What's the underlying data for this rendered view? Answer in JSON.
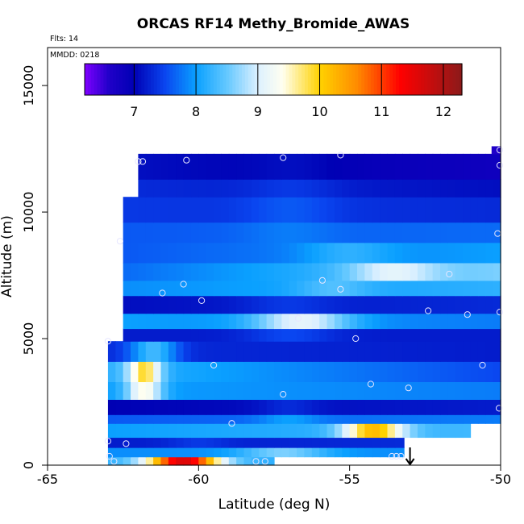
{
  "chart_data": {
    "type": "heatmap",
    "title": "ORCAS RF14 Methy_Bromide_AWAS",
    "flights_note": "Flts: 14",
    "date_note": "MMDD: 0218",
    "xlabel": "Latitude (deg N)",
    "ylabel": "Altitude (m)",
    "xlim": [
      -65,
      -50
    ],
    "ylim": [
      0,
      16500
    ],
    "x_ticks": [
      -65,
      -60,
      -55,
      -50
    ],
    "x_tick_labels": [
      "-65",
      "-60",
      "-55",
      "-50"
    ],
    "y_ticks": [
      0,
      5000,
      10000,
      15000
    ],
    "y_tick_labels": [
      "0",
      "5000",
      "10000",
      "15000"
    ],
    "colorbar": {
      "range": [
        6.2,
        12.3
      ],
      "ticks": [
        7,
        8,
        9,
        10,
        11,
        12
      ],
      "tick_labels": [
        "7",
        "8",
        "9",
        "10",
        "11",
        "12"
      ],
      "stops": [
        {
          "v": 6.2,
          "c": "#7f00ff"
        },
        {
          "v": 6.6,
          "c": "#1f00c8"
        },
        {
          "v": 7.0,
          "c": "#0000b4"
        },
        {
          "v": 7.5,
          "c": "#0a46f0"
        },
        {
          "v": 8.0,
          "c": "#0aa0ff"
        },
        {
          "v": 8.5,
          "c": "#64c8ff"
        },
        {
          "v": 9.0,
          "c": "#dcf0ff"
        },
        {
          "v": 9.4,
          "c": "#fffff0"
        },
        {
          "v": 10.0,
          "c": "#ffd200"
        },
        {
          "v": 10.6,
          "c": "#ff8c00"
        },
        {
          "v": 11.3,
          "c": "#ff0000"
        },
        {
          "v": 12.3,
          "c": "#8b1a1a"
        }
      ]
    },
    "bands": [
      {
        "alt_lo": 0,
        "alt_hi": 330,
        "lat_lo": -63.0,
        "lat_hi": -57.5,
        "v_lo": 8.2,
        "v_hi": 8.2,
        "pos": -60.5,
        "w": 1.2,
        "peak": 11.6
      },
      {
        "alt_lo": 330,
        "alt_hi": 700,
        "lat_lo": -63.0,
        "lat_hi": -53.2,
        "v_lo": 7.9,
        "v_hi": 7.9,
        "pos": -57.2,
        "w": 1.5,
        "peak": 8.6
      },
      {
        "alt_lo": 700,
        "alt_hi": 1100,
        "lat_lo": -63.0,
        "lat_hi": -53.2,
        "v_lo": 7.2,
        "v_hi": 7.3,
        "pos": -60,
        "w": 1.0,
        "peak": 7.4
      },
      {
        "alt_lo": 1100,
        "alt_hi": 1650,
        "lat_lo": -63.0,
        "lat_hi": -51.0,
        "v_lo": 8.0,
        "v_hi": 8.3,
        "pos": -54.2,
        "w": 1.0,
        "peak": 10.2
      },
      {
        "alt_lo": 1650,
        "alt_hi": 2000,
        "lat_lo": -63.0,
        "lat_hi": -50.0,
        "v_lo": 7.6,
        "v_hi": 7.8,
        "pos": -57,
        "w": 1.0,
        "peak": 8.0
      },
      {
        "alt_lo": 2000,
        "alt_hi": 2600,
        "lat_lo": -63.0,
        "lat_hi": -50.0,
        "v_lo": 7.0,
        "v_hi": 7.2,
        "pos": -57,
        "w": 1.0,
        "peak": 7.3
      },
      {
        "alt_lo": 2600,
        "alt_hi": 3300,
        "lat_lo": -63.0,
        "lat_hi": -50.0,
        "v_lo": 8.0,
        "v_hi": 7.8,
        "pos": -61.8,
        "w": 0.6,
        "peak": 9.4
      },
      {
        "alt_lo": 3300,
        "alt_hi": 4100,
        "lat_lo": -63.0,
        "lat_hi": -50.0,
        "v_lo": 8.2,
        "v_hi": 7.5,
        "pos": -61.8,
        "w": 0.55,
        "peak": 9.9
      },
      {
        "alt_lo": 4100,
        "alt_hi": 4900,
        "lat_lo": -63.0,
        "lat_hi": -50.0,
        "v_lo": 7.3,
        "v_hi": 7.2,
        "pos": -61.5,
        "w": 0.8,
        "peak": 8.3
      },
      {
        "alt_lo": 4900,
        "alt_hi": 5400,
        "lat_lo": -62.5,
        "lat_hi": -50.0,
        "v_lo": 7.2,
        "v_hi": 7.2,
        "pos": -57,
        "w": 1.5,
        "peak": 7.5
      },
      {
        "alt_lo": 5400,
        "alt_hi": 6000,
        "lat_lo": -62.5,
        "lat_hi": -50.0,
        "v_lo": 8.0,
        "v_hi": 7.8,
        "pos": -56.6,
        "w": 1.6,
        "peak": 9.1
      },
      {
        "alt_lo": 6000,
        "alt_hi": 6700,
        "lat_lo": -62.5,
        "lat_hi": -50.0,
        "v_lo": 7.1,
        "v_hi": 7.3,
        "pos": -57,
        "w": 1.5,
        "peak": 7.4
      },
      {
        "alt_lo": 6700,
        "alt_hi": 7300,
        "lat_lo": -62.5,
        "lat_hi": -50.0,
        "v_lo": 7.9,
        "v_hi": 8.2,
        "pos": -55.5,
        "w": 1.2,
        "peak": 8.4
      },
      {
        "alt_lo": 7300,
        "alt_hi": 8000,
        "lat_lo": -62.5,
        "lat_hi": -50.0,
        "v_lo": 7.7,
        "v_hi": 8.6,
        "pos": -53.5,
        "w": 1.5,
        "peak": 9.1
      },
      {
        "alt_lo": 8000,
        "alt_hi": 8800,
        "lat_lo": -62.5,
        "lat_hi": -50.0,
        "v_lo": 7.6,
        "v_hi": 8.0,
        "pos": -55,
        "w": 1.5,
        "peak": 8.2
      },
      {
        "alt_lo": 8800,
        "alt_hi": 9600,
        "lat_lo": -62.5,
        "lat_hi": -50.0,
        "v_lo": 7.6,
        "v_hi": 7.7,
        "pos": -57,
        "w": 1.5,
        "peak": 7.8
      },
      {
        "alt_lo": 9600,
        "alt_hi": 10600,
        "lat_lo": -62.5,
        "lat_hi": -50.0,
        "v_lo": 7.4,
        "v_hi": 7.3,
        "pos": -57,
        "w": 1.5,
        "peak": 7.6
      },
      {
        "alt_lo": 10600,
        "alt_hi": 11300,
        "lat_lo": -62.0,
        "lat_hi": -50.0,
        "v_lo": 7.3,
        "v_hi": 7.1,
        "pos": -57,
        "w": 1.5,
        "peak": 7.4
      },
      {
        "alt_lo": 11300,
        "alt_hi": 12300,
        "lat_lo": -62.0,
        "lat_hi": -50.0,
        "v_lo": 7.1,
        "v_hi": 6.8,
        "pos": -57,
        "w": 1.5,
        "peak": 7.1
      },
      {
        "alt_lo": 12300,
        "alt_hi": 12600,
        "lat_lo": -50.3,
        "lat_hi": -50.0,
        "v_lo": 6.6,
        "v_hi": 6.6,
        "pos": -50.1,
        "w": 0.3,
        "peak": 6.6
      }
    ],
    "samples": [
      {
        "lat": -63.0,
        "alt": 4900
      },
      {
        "lat": -63.0,
        "alt": 950
      },
      {
        "lat": -62.95,
        "alt": 350
      },
      {
        "lat": -62.8,
        "alt": 150
      },
      {
        "lat": -62.4,
        "alt": 850
      },
      {
        "lat": -62.6,
        "alt": 8850
      },
      {
        "lat": -62.0,
        "alt": 12000
      },
      {
        "lat": -61.85,
        "alt": 12000
      },
      {
        "lat": -61.2,
        "alt": 6800
      },
      {
        "lat": -60.5,
        "alt": 7150
      },
      {
        "lat": -60.4,
        "alt": 12050
      },
      {
        "lat": -59.9,
        "alt": 6500
      },
      {
        "lat": -59.5,
        "alt": 3950
      },
      {
        "lat": -58.9,
        "alt": 1650
      },
      {
        "lat": -58.1,
        "alt": 150
      },
      {
        "lat": -57.8,
        "alt": 150
      },
      {
        "lat": -57.2,
        "alt": 2800
      },
      {
        "lat": -57.2,
        "alt": 12150
      },
      {
        "lat": -56.7,
        "alt": 5800
      },
      {
        "lat": -55.9,
        "alt": 7300
      },
      {
        "lat": -55.3,
        "alt": 6950
      },
      {
        "lat": -55.3,
        "alt": 12250
      },
      {
        "lat": -54.8,
        "alt": 5000
      },
      {
        "lat": -54.3,
        "alt": 3200
      },
      {
        "lat": -53.6,
        "alt": 350
      },
      {
        "lat": -53.45,
        "alt": 350
      },
      {
        "lat": -53.3,
        "alt": 350
      },
      {
        "lat": -53.05,
        "alt": 3050
      },
      {
        "lat": -52.4,
        "alt": 6100
      },
      {
        "lat": -51.7,
        "alt": 7550
      },
      {
        "lat": -51.1,
        "alt": 5950
      },
      {
        "lat": -50.6,
        "alt": 3950
      },
      {
        "lat": -50.05,
        "alt": 2250
      },
      {
        "lat": -50.1,
        "alt": 9150
      },
      {
        "lat": -50.0,
        "alt": 11850
      },
      {
        "lat": -49.9,
        "alt": 12450
      },
      {
        "lat": -49.8,
        "alt": 6050
      }
    ],
    "arrow": {
      "lat": -53.0,
      "alt_from": 700,
      "alt_to": 0
    }
  }
}
